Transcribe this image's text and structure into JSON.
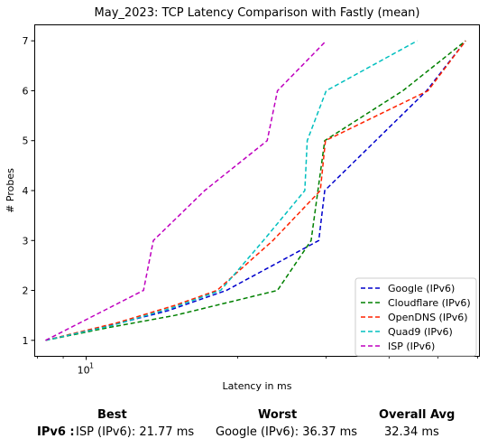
{
  "chart_data": {
    "type": "line",
    "title": "May_2023: TCP Latency Comparison with Fastly (mean)",
    "xlabel": "Latency in ms",
    "ylabel": "# Probes",
    "xscale": "log",
    "xlim": [
      7.9,
      60.5
    ],
    "ylim": [
      0.68,
      7.32
    ],
    "xticks": [
      {
        "value": 10,
        "label": "10",
        "exponent": "1"
      }
    ],
    "yticks": [
      1,
      2,
      3,
      4,
      5,
      6,
      7
    ],
    "legend_position": "lower right",
    "grid": false,
    "series": [
      {
        "name": "Google (IPv6)",
        "color": "#0000cc",
        "x": [
          8.3,
          11.2,
          14.6,
          19.0,
          29.0,
          29.8,
          47.5,
          56.8
        ],
        "y": [
          1,
          1.3,
          1.6,
          2,
          3,
          4,
          6,
          7
        ]
      },
      {
        "name": "Cloudflare (IPv6)",
        "color": "#008000",
        "x": [
          8.3,
          11.0,
          15.0,
          24.0,
          28.0,
          29.8,
          42.6,
          56.8
        ],
        "y": [
          1,
          1.25,
          1.5,
          2,
          3,
          5,
          6,
          7
        ]
      },
      {
        "name": "OpenDNS (IPv6)",
        "color": "#ff2200",
        "x": [
          8.3,
          11.5,
          15.0,
          18.2,
          23.5,
          29.2,
          29.9,
          47.8,
          56.8
        ],
        "y": [
          1,
          1.35,
          1.7,
          2,
          3,
          4,
          5,
          6,
          7
        ]
      },
      {
        "name": "Quad9 (IPv6)",
        "color": "#00bfbf",
        "x": [
          8.3,
          11.3,
          14.8,
          18.5,
          22.5,
          27.2,
          27.5,
          30.0,
          45.5
        ],
        "y": [
          1,
          1.3,
          1.65,
          2,
          3,
          4,
          5,
          6,
          7
        ]
      },
      {
        "name": "ISP (IPv6)",
        "color": "#bf00bf",
        "x": [
          8.3,
          13.0,
          13.6,
          17.2,
          22.9,
          24.0,
          30.0
        ],
        "y": [
          1,
          2,
          3,
          4,
          5,
          6,
          7
        ]
      }
    ]
  },
  "summary": {
    "headers": {
      "best": "Best",
      "worst": "Worst",
      "avg": "Overall Avg"
    },
    "row_label": "IPv6 :",
    "best": "ISP (IPv6): 21.77 ms",
    "worst": "Google (IPv6): 36.37 ms",
    "avg": "32.34 ms"
  }
}
